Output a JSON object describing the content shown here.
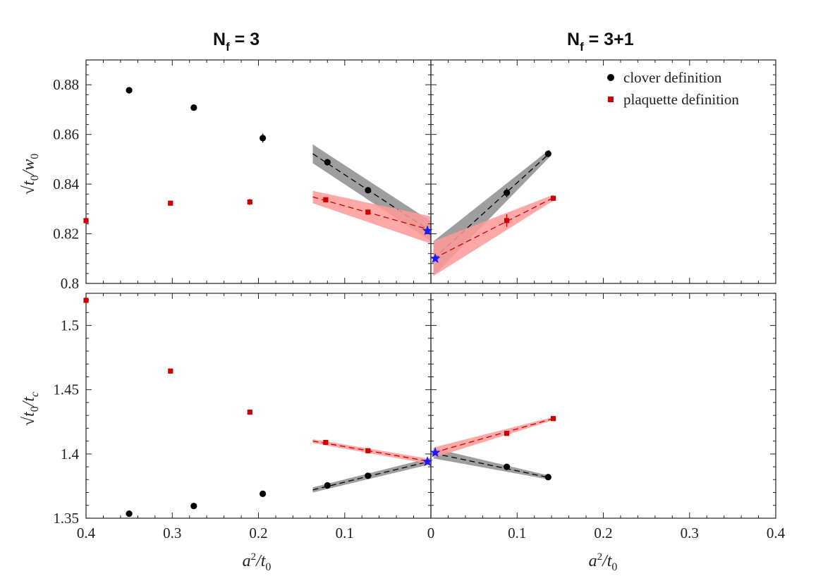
{
  "chart_data": {
    "type": "scatter",
    "title_left": "N_f = 3",
    "title_right": "N_f = 3+1",
    "title_left_parts": {
      "main": "N",
      "sub": "f",
      "rest": " = 3"
    },
    "title_right_parts": {
      "main": "N",
      "sub": "f",
      "rest": " = 3+1"
    },
    "xlabel": "a²/t₀",
    "xlabel_parts": {
      "a": "a",
      "sup": "2",
      "slash": "/t",
      "sub": "0"
    },
    "x_ticks_left": [
      "0.4",
      "0.3",
      "0.2",
      "0.1",
      "0"
    ],
    "x_ticks_right": [
      "0.1",
      "0.2",
      "0.3",
      "0.4"
    ],
    "xlim_left": [
      0.4,
      0
    ],
    "xlim_right": [
      0,
      0.4
    ],
    "colors": {
      "clover": "#000000",
      "plaquette": "#cc0000",
      "star": "#1a1aff",
      "band_clover": "#999999",
      "band_plaquette": "#ff9999"
    },
    "legend": [
      {
        "label": "clover definition",
        "marker": "circle",
        "color": "#000000"
      },
      {
        "label": "plaquette definition",
        "marker": "square",
        "color": "#cc0000"
      }
    ],
    "top": {
      "ylabel": "√t₀/w₀",
      "ylabel_parts": {
        "root": "√",
        "t": "t",
        "sub1": "0",
        "slash": "/w",
        "sub2": "0"
      },
      "ylim": [
        0.8,
        0.89
      ],
      "y_ticks": [
        "0.8",
        "0.82",
        "0.84",
        "0.86",
        "0.88"
      ],
      "y_tick_values": [
        0.8,
        0.82,
        0.84,
        0.86,
        0.88
      ],
      "series_left": {
        "clover": {
          "x": [
            0.35,
            0.275,
            0.195,
            0.12,
            0.073
          ],
          "y": [
            0.8778,
            0.8708,
            0.8585,
            0.8488,
            0.8375
          ],
          "err": [
            0.0008,
            0.0008,
            0.0018,
            0.001,
            0.001
          ]
        },
        "plaquette": {
          "x": [
            0.4,
            0.302,
            0.21,
            0.122,
            0.073
          ],
          "y": [
            0.8253,
            0.8323,
            0.8328,
            0.8337,
            0.8287
          ],
          "err": [
            0.0006,
            0.0006,
            0.0012,
            0.0008,
            0.0008
          ]
        }
      },
      "series_right": {
        "clover": {
          "x": [
            0.088,
            0.136
          ],
          "y": [
            0.8365,
            0.8522
          ],
          "err": [
            0.0018,
            0.0008
          ]
        },
        "plaquette": {
          "x": [
            0.088,
            0.142
          ],
          "y": [
            0.8253,
            0.8343
          ],
          "err": [
            0.0025,
            0.001
          ]
        }
      },
      "fits_left": {
        "clover": {
          "x0": 0.137,
          "y0": 0.8522,
          "x1": 0.0,
          "y1": 0.821,
          "band": [
            0.0038,
            0.004
          ]
        },
        "plaquette": {
          "x0": 0.137,
          "y0": 0.8348,
          "x1": 0.0,
          "y1": 0.8215,
          "band": [
            0.0025,
            0.0055
          ]
        }
      },
      "fits_right": {
        "clover": {
          "x0": 0.003,
          "y0": 0.81,
          "x1": 0.138,
          "y1": 0.8525,
          "band": [
            0.007,
            0.0015
          ]
        },
        "plaquette": {
          "x0": 0.003,
          "y0": 0.81,
          "x1": 0.142,
          "y1": 0.8345,
          "band": [
            0.007,
            0.0012
          ]
        }
      },
      "stars": [
        {
          "panel": "left",
          "x": 0.004,
          "y": 0.8212
        },
        {
          "panel": "right",
          "x": 0.005,
          "y": 0.81
        }
      ]
    },
    "bottom": {
      "ylabel": "√t₀/t_c",
      "ylabel_parts": {
        "root": "√",
        "t": "t",
        "sub1": "0",
        "slash": "/t",
        "sub2": "c"
      },
      "ylim": [
        1.35,
        1.525
      ],
      "y_ticks": [
        "1.35",
        "1.4",
        "1.45",
        "1.5"
      ],
      "y_tick_values": [
        1.35,
        1.4,
        1.45,
        1.5
      ],
      "series_left": {
        "clover": {
          "x": [
            0.35,
            0.275,
            0.195,
            0.12,
            0.073
          ],
          "y": [
            1.3535,
            1.3595,
            1.369,
            1.3755,
            1.383
          ],
          "err": [
            0,
            0,
            0,
            0,
            0
          ]
        },
        "plaquette": {
          "x": [
            0.4,
            0.302,
            0.21,
            0.122,
            0.073
          ],
          "y": [
            1.5195,
            1.4645,
            1.4325,
            1.409,
            1.4025
          ],
          "err": [
            0,
            0,
            0,
            0,
            0
          ]
        }
      },
      "series_right": {
        "clover": {
          "x": [
            0.088,
            0.136
          ],
          "y": [
            1.39,
            1.382
          ],
          "err": [
            0,
            0
          ]
        },
        "plaquette": {
          "x": [
            0.088,
            0.142
          ],
          "y": [
            1.416,
            1.4275
          ],
          "err": [
            0,
            0
          ]
        }
      },
      "fits_left": {
        "clover": {
          "x0": 0.137,
          "y0": 1.372,
          "x1": 0.0,
          "y1": 1.3945,
          "band": [
            0.002,
            0.0025
          ]
        },
        "plaquette": {
          "x0": 0.137,
          "y0": 1.41,
          "x1": 0.0,
          "y1": 1.394,
          "band": [
            0.0015,
            0.002
          ]
        }
      },
      "fits_right": {
        "clover": {
          "x0": 0.003,
          "y0": 1.4005,
          "x1": 0.138,
          "y1": 1.3815,
          "band": [
            0.004,
            0.0015
          ]
        },
        "plaquette": {
          "x0": 0.003,
          "y0": 1.401,
          "x1": 0.142,
          "y1": 1.4275,
          "band": [
            0.004,
            0.0012
          ]
        }
      },
      "stars": [
        {
          "panel": "left",
          "x": 0.004,
          "y": 1.394
        },
        {
          "panel": "right",
          "x": 0.005,
          "y": 1.401
        }
      ]
    }
  }
}
